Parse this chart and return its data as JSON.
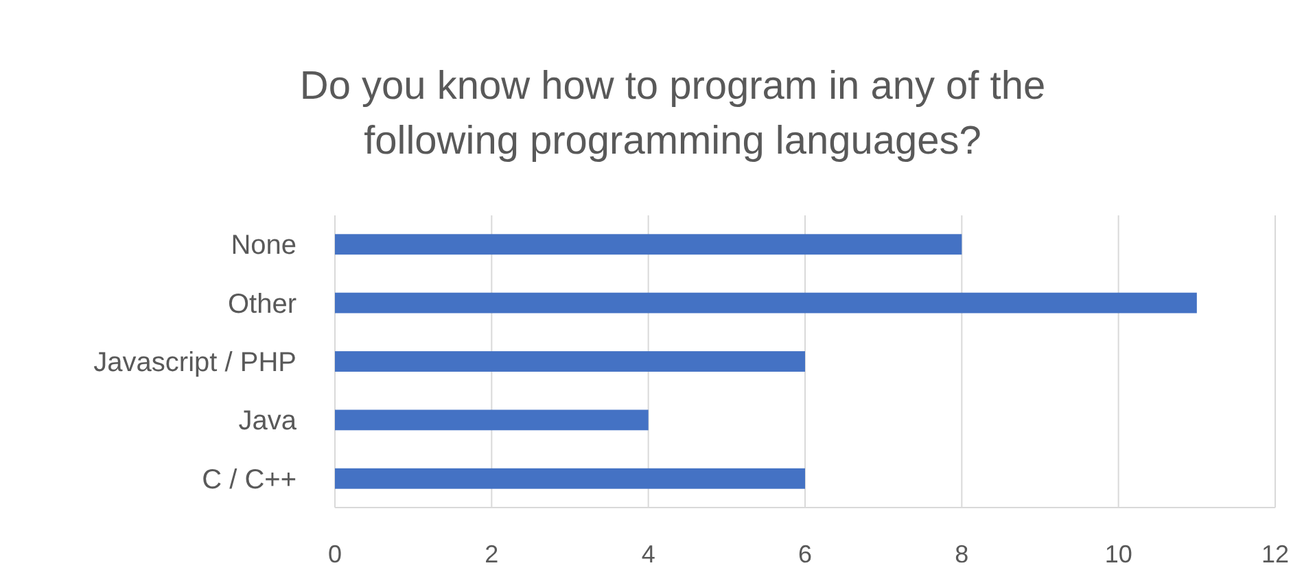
{
  "chart_data": {
    "type": "bar",
    "orientation": "horizontal",
    "title": "Do you know how to program in any of the following programming languages?",
    "categories": [
      "None",
      "Other",
      "Javascript / PHP",
      "Java",
      "C / C++"
    ],
    "values": [
      8,
      11,
      6,
      4,
      6
    ],
    "color": "#4472c4",
    "xlim": [
      0,
      12
    ],
    "xticks": [
      0,
      2,
      4,
      6,
      8,
      10,
      12
    ],
    "grid": "x"
  }
}
